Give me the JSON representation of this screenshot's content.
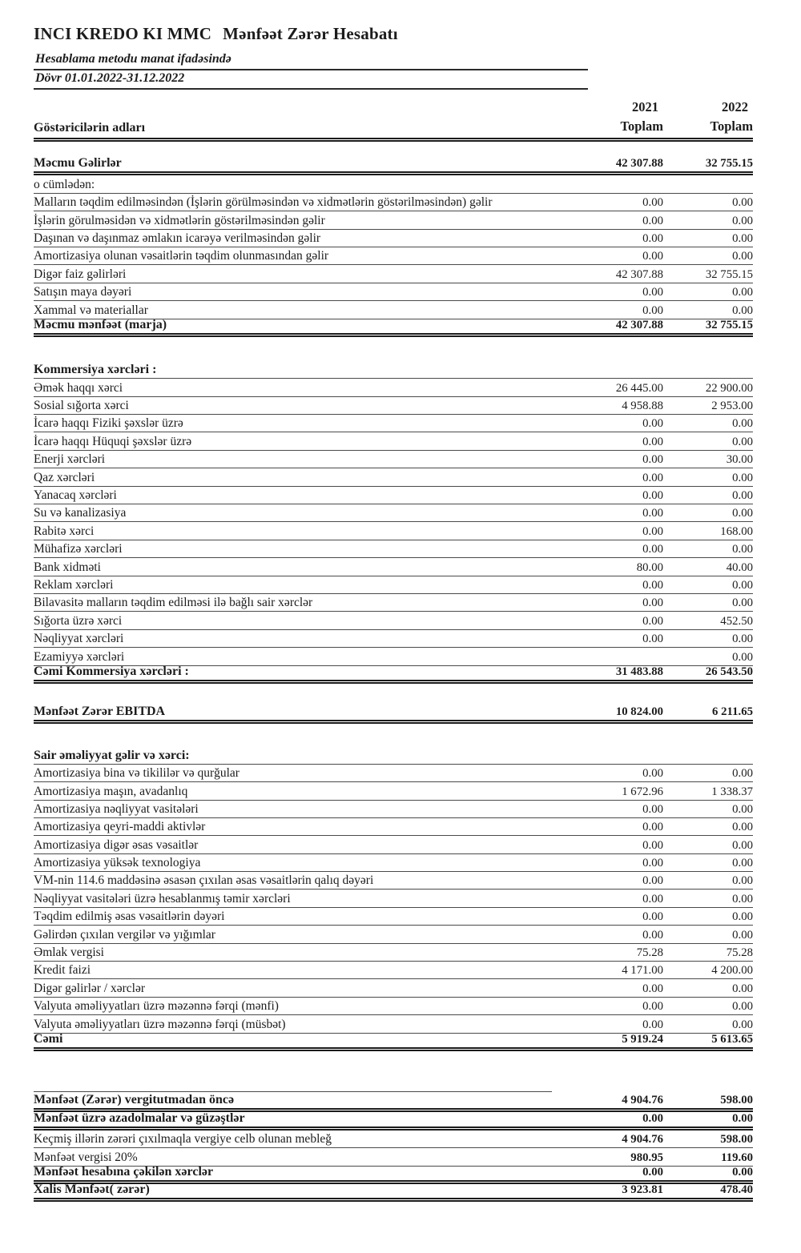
{
  "colors": {
    "ink": "#1c1c1c",
    "rule": "#4a4a4a",
    "background": "#ffffff"
  },
  "header": {
    "company": "INCI KREDO KI MMC",
    "report": "Mənfəət Zərər Hesabatı",
    "method_line": "Hesablama metodu manat ifadəsində",
    "period_line": "Dövr 01.01.2022-31.12.2022",
    "names_label": "Göstəricilərin adları",
    "col1_year": "2021",
    "col2_year": "2022",
    "col_total_label": "Toplam"
  },
  "rows": [
    {
      "label": "Məcmu Gəlirlər",
      "v2021": "42 307.88",
      "v2022": "32 755.15",
      "style": "total"
    },
    {
      "label": "o cümlədən:",
      "v2021": "",
      "v2022": "",
      "style": "item"
    },
    {
      "label": "Malların təqdim edilməsindən (İşlərin görülməsindən və xidmətlərin göstərilməsindən) gəlir",
      "v2021": "0.00",
      "v2022": "0.00",
      "style": "item"
    },
    {
      "label": "İşlərin görulməsidən və xidmətlərin göstərilməsindən gəlir",
      "v2021": "0.00",
      "v2022": "0.00",
      "style": "item"
    },
    {
      "label": "Daşınan və daşınmaz əmlakın icarəyə verilməsindən gəlir",
      "v2021": "0.00",
      "v2022": "0.00",
      "style": "item"
    },
    {
      "label": "Amortizasiya olunan vəsaitlərin təqdim olunmasından gəlir",
      "v2021": "0.00",
      "v2022": "0.00",
      "style": "item"
    },
    {
      "label": "Digər faiz gəlirləri",
      "v2021": "42 307.88",
      "v2022": "32 755.15",
      "style": "item"
    },
    {
      "label": "Satışın maya dəyəri",
      "v2021": "0.00",
      "v2022": "0.00",
      "style": "item"
    },
    {
      "label": "Xammal və materiallar",
      "v2021": "0.00",
      "v2022": "0.00",
      "style": "item"
    },
    {
      "label": "Məcmu mənfəət (marja)",
      "v2021": "42 307.88",
      "v2022": "32 755.15",
      "style": "total"
    },
    {
      "style": "gap"
    },
    {
      "label": "Kommersiya xərcləri :",
      "v2021": "",
      "v2022": "",
      "style": "section"
    },
    {
      "label": "Əmək haqqı xərci",
      "v2021": "26 445.00",
      "v2022": "22 900.00",
      "style": "item"
    },
    {
      "label": "Sosial sığorta xərci",
      "v2021": "4 958.88",
      "v2022": "2 953.00",
      "style": "item"
    },
    {
      "label": "İcarə haqqı Fiziki şəxslər üzrə",
      "v2021": "0.00",
      "v2022": "0.00",
      "style": "item"
    },
    {
      "label": "İcarə haqqı Hüquqi şəxslər üzrə",
      "v2021": "0.00",
      "v2022": "0.00",
      "style": "item"
    },
    {
      "label": "Enerji xərcləri",
      "v2021": "0.00",
      "v2022": "30.00",
      "style": "item"
    },
    {
      "label": "Qaz xərcləri",
      "v2021": "0.00",
      "v2022": "0.00",
      "style": "item"
    },
    {
      "label": "Yanacaq xərcləri",
      "v2021": "0.00",
      "v2022": "0.00",
      "style": "item"
    },
    {
      "label": "Su və kanalizasiya",
      "v2021": "0.00",
      "v2022": "0.00",
      "style": "item"
    },
    {
      "label": "Rabitə xərci",
      "v2021": "0.00",
      "v2022": "168.00",
      "style": "item"
    },
    {
      "label": "Mühafizə xərcləri",
      "v2021": "0.00",
      "v2022": "0.00",
      "style": "item"
    },
    {
      "label": "Bank xidməti",
      "v2021": "80.00",
      "v2022": "40.00",
      "style": "item"
    },
    {
      "label": "Reklam xərcləri",
      "v2021": "0.00",
      "v2022": "0.00",
      "style": "item"
    },
    {
      "label": "Bilavasitə malların təqdim edilməsi ilə bağlı sair xərclər",
      "v2021": "0.00",
      "v2022": "0.00",
      "style": "item"
    },
    {
      "label": "Sığorta üzrə xərci",
      "v2021": "0.00",
      "v2022": "452.50",
      "style": "item"
    },
    {
      "label": "Nəqliyyat xərcləri",
      "v2021": "0.00",
      "v2022": "0.00",
      "style": "item"
    },
    {
      "label": "Ezamiyyə xərcləri",
      "v2021": "",
      "v2022": "0.00",
      "style": "item"
    },
    {
      "label": "Cəmi Kommersiya xərcləri :",
      "v2021": "31 483.88",
      "v2022": "26 543.50",
      "style": "total"
    },
    {
      "style": "gap-sm"
    },
    {
      "label": "Mənfəət Zərər EBITDA",
      "v2021": "10 824.00",
      "v2022": "6 211.65",
      "style": "total"
    },
    {
      "style": "gap-sm"
    },
    {
      "label": "Sair əməliyyat gəlir və xərci:",
      "v2021": "",
      "v2022": "",
      "style": "section"
    },
    {
      "label": "Amortizasiya bina və tikililər və qurğular",
      "v2021": "0.00",
      "v2022": "0.00",
      "style": "item"
    },
    {
      "label": "Amortizasiya maşın, avadanlıq",
      "v2021": "1 672.96",
      "v2022": "1 338.37",
      "style": "item"
    },
    {
      "label": "Amortizasiya nəqliyyat vasitələri",
      "v2021": "0.00",
      "v2022": "0.00",
      "style": "item"
    },
    {
      "label": "Amortizasiya qeyri-maddi aktivlər",
      "v2021": "0.00",
      "v2022": "0.00",
      "style": "item"
    },
    {
      "label": "Amortizasiya digər əsas vəsaitlər",
      "v2021": "0.00",
      "v2022": "0.00",
      "style": "item"
    },
    {
      "label": "Amortizasiya yüksək texnologiya",
      "v2021": "0.00",
      "v2022": "0.00",
      "style": "item"
    },
    {
      "label": "VM-nin 114.6 maddəsinə əsasən çıxılan əsas vəsaitlərin qalıq dəyəri",
      "v2021": "0.00",
      "v2022": "0.00",
      "style": "item"
    },
    {
      "label": "Nəqliyyat vasitələri üzrə hesablanmış təmir xərcləri",
      "v2021": "0.00",
      "v2022": "0.00",
      "style": "item"
    },
    {
      "label": "Təqdim edilmiş əsas vəsaitlərin dəyəri",
      "v2021": "0.00",
      "v2022": "0.00",
      "style": "item"
    },
    {
      "label": "Gəlirdən çıxılan vergilər və yığımlar",
      "v2021": "0.00",
      "v2022": "0.00",
      "style": "item"
    },
    {
      "label": "Əmlak vergisi",
      "v2021": "75.28",
      "v2022": "75.28",
      "style": "item"
    },
    {
      "label": "Kredit faizi",
      "v2021": "4 171.00",
      "v2022": "4 200.00",
      "style": "item"
    },
    {
      "label": "Digər gəlirlər / xərclər",
      "v2021": "0.00",
      "v2022": "0.00",
      "style": "item"
    },
    {
      "label": "Valyuta əməliyyatları üzrə məzənnə fərqi (mənfi)",
      "v2021": "0.00",
      "v2022": "0.00",
      "style": "item"
    },
    {
      "label": "Valyuta əməliyyatları üzrə məzənnə fərqi (müsbət)",
      "v2021": "0.00",
      "v2022": "0.00",
      "style": "item"
    },
    {
      "label": "Cəmi",
      "v2021": "5 919.24",
      "v2022": "5 613.65",
      "style": "total"
    },
    {
      "style": "gap-lg"
    },
    {
      "style": "preline"
    },
    {
      "label": "Mənfəət (Zərər) vergitutmadan öncə",
      "v2021": "4 904.76",
      "v2022": "598.00",
      "style": "total"
    },
    {
      "label": "Mənfəət üzrə azadolmalar və güzəştlər",
      "v2021": "0.00",
      "v2022": "0.00",
      "style": "total"
    },
    {
      "label": "Keçmiş illərin zərəri çıxılmaqla vergiye celb olunan mebleğ",
      "v2021": "4 904.76",
      "v2022": "598.00",
      "style": "item-bv"
    },
    {
      "label": "Mənfəət vergisi  20%",
      "v2021": "980.95",
      "v2022": "119.60",
      "style": "item-bv"
    },
    {
      "label": "Mənfəət hesabına çəkilən xərclər",
      "v2021": "0.00",
      "v2022": "0.00",
      "style": "total"
    },
    {
      "label": "Xalis Mənfəət( zərər)",
      "v2021": "3 923.81",
      "v2022": "478.40",
      "style": "total"
    }
  ]
}
